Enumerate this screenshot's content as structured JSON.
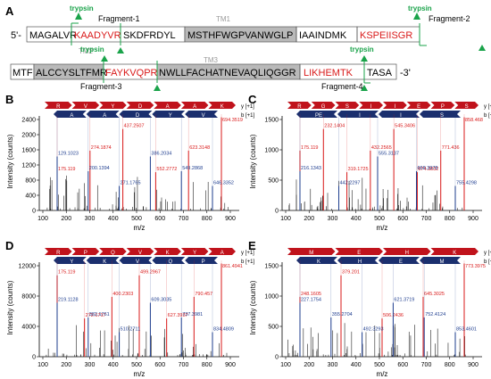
{
  "colors": {
    "accent_green": "#1aa34a",
    "red": "#c0131c",
    "navy": "#1b2f6e",
    "tm_gray": "#b9b9b9",
    "label_red": "#d91a1a",
    "label_blue": "#1e3d8f"
  },
  "panelA": {
    "label": "A",
    "trypsin_label": "trypsin",
    "row1": {
      "prefix": "5'-",
      "segments": [
        "MAGALVR",
        "KAADYVR",
        "SKDFRDYL",
        "MSTHFWGPVANWGLP",
        "IAAINDMK",
        "KSPEIISGR"
      ],
      "fragment1": "Fragment-1",
      "fragment2": "Fragment-2",
      "tm1": "TM1"
    },
    "row2": {
      "segments": [
        "MTF",
        "ALCCYSLTFMR",
        "FAYKVQPR",
        "NWLLFACHATNEVAQLIQGGR",
        "LIKHEMTK",
        "TASA"
      ],
      "suffix": "-3'",
      "tm2": "TM2",
      "tm3": "TM3",
      "fragment3": "Fragment-3",
      "fragment4": "Fragment-4"
    }
  },
  "panels": [
    {
      "letter": "B",
      "ylabel": "Intensity (counts)",
      "xlabel": "m/z",
      "yticks": [
        "0",
        "400",
        "800",
        "1200",
        "1600",
        "2000",
        "2400"
      ],
      "xticks": [
        "100",
        "200",
        "300",
        "400",
        "500",
        "600",
        "700",
        "800",
        "900"
      ],
      "y_letters": [
        "R",
        "V",
        "Y",
        "D",
        "A",
        "A",
        "K"
      ],
      "b_letters": [
        "A",
        "A",
        "D",
        "Y",
        "V"
      ],
      "y_label": "y [+1]",
      "b_label": "b [+1]",
      "red_labels": [
        "694.3519",
        "623.3148",
        "552.2772",
        "437.2507",
        "274.1874",
        "175.119"
      ],
      "blue_labels": [
        "646.3352",
        "549.2868",
        "386.2034",
        "271.1765",
        "200.1394",
        "129.1023"
      ]
    },
    {
      "letter": "C",
      "ylabel": "Intensity (counts)",
      "xlabel": "m/z",
      "yticks": [
        "0",
        "500",
        "1000",
        "1500"
      ],
      "xticks": [
        "100",
        "200",
        "300",
        "400",
        "500",
        "600",
        "700",
        "800",
        "900"
      ],
      "y_letters": [
        "R",
        "G",
        "S",
        "I",
        "I",
        "E",
        "P",
        "S"
      ],
      "b_letters": [
        "PE",
        "I",
        "I",
        "S"
      ],
      "y_label": "y [+1]",
      "b_label": "b [+1]",
      "red_labels": [
        "858.468",
        "771.436",
        "674.3832",
        "545.3406",
        "432.2565",
        "319.1725",
        "232.1404",
        "175.119"
      ],
      "blue_labels": [
        "755.4298",
        "668.3978",
        "555.3137",
        "442.2297",
        "216.1343"
      ]
    },
    {
      "letter": "D",
      "ylabel": "Intensity (counts)",
      "xlabel": "m/z",
      "yticks": [
        "0",
        "4000",
        "8000",
        "12000"
      ],
      "xticks": [
        "100",
        "200",
        "300",
        "400",
        "500",
        "600",
        "700",
        "800",
        "900"
      ],
      "y_letters": [
        "R",
        "P",
        "Q",
        "V",
        "K",
        "Y",
        "A"
      ],
      "b_letters": [
        "Y",
        "K",
        "V",
        "Q",
        "P"
      ],
      "y_label": "y [+1]",
      "b_label": "b [+1]",
      "red_labels": [
        "861.4941",
        "790.457",
        "627.3937",
        "499.2967",
        "400.2303",
        "272.1717",
        "175.119"
      ],
      "blue_labels": [
        "834.4809",
        "737.3981",
        "609.3035",
        "510.2711",
        "382.1761",
        "219.1128"
      ]
    },
    {
      "letter": "E",
      "ylabel": "Intensity (counts)",
      "xlabel": "m/z",
      "yticks": [
        "0",
        "500",
        "1000",
        "1500"
      ],
      "xticks": [
        "100",
        "200",
        "300",
        "400",
        "500",
        "600",
        "700",
        "800",
        "900"
      ],
      "y_letters": [
        "M",
        "E",
        "H",
        "K"
      ],
      "b_letters": [
        "K",
        "H",
        "E",
        "M"
      ],
      "y_label": "y [+1]",
      "b_label": "b [+1]",
      "red_labels": [
        "773.3975",
        "645.3025",
        "506.2436",
        "379.201",
        "248.1605"
      ],
      "blue_labels": [
        "853.4601",
        "752.4124",
        "621.3719",
        "492.3293",
        "355.2704",
        "227.1754"
      ]
    }
  ]
}
